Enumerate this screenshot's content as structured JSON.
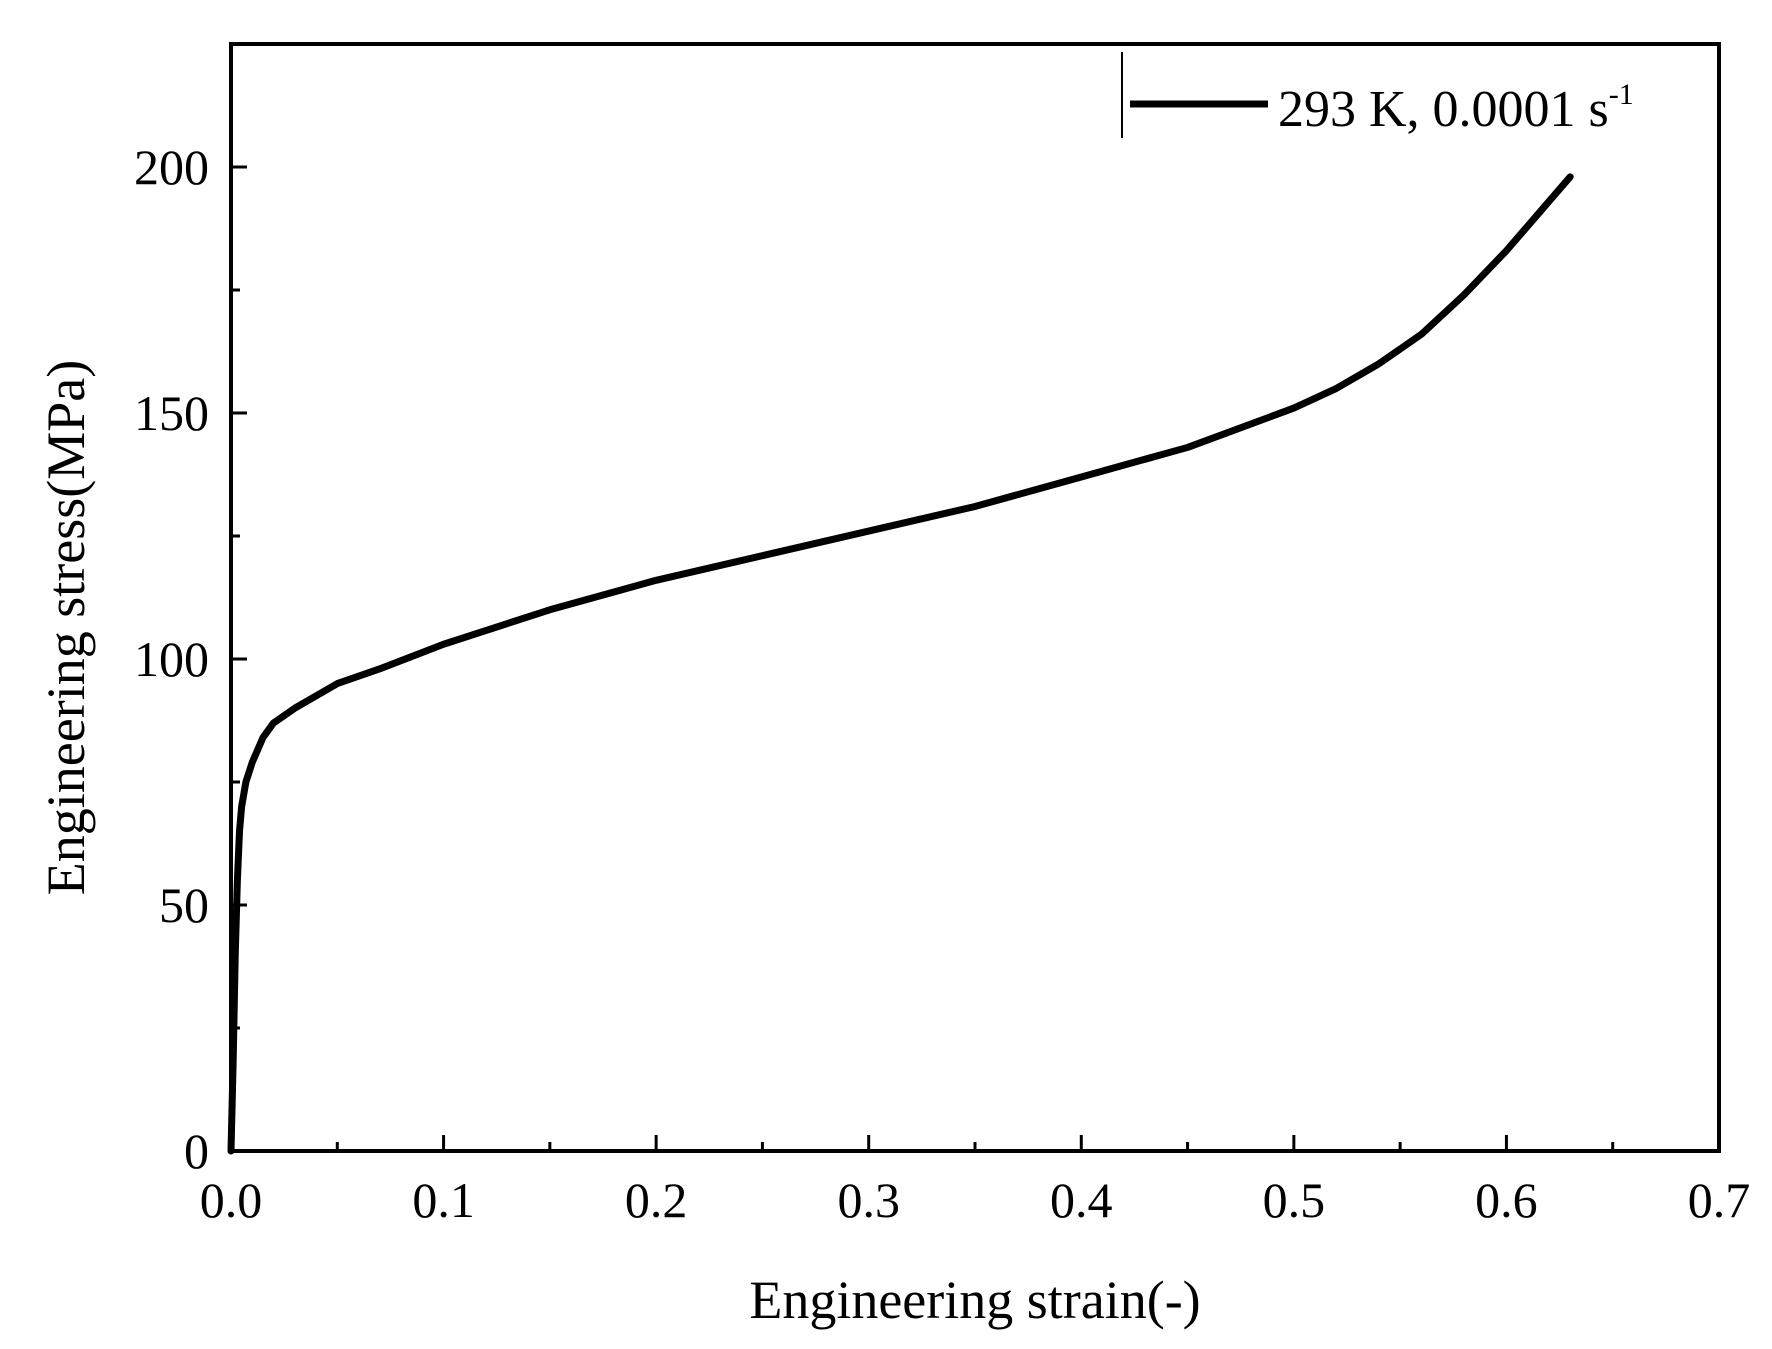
{
  "chart_data": {
    "type": "line",
    "title": "",
    "xlabel": "Engineering strain(-)",
    "ylabel": "Engineering stress(MPa)",
    "xlim": [
      0.0,
      0.7
    ],
    "ylim": [
      0,
      225
    ],
    "x_ticks": [
      0.0,
      0.1,
      0.2,
      0.3,
      0.4,
      0.5,
      0.6,
      0.7
    ],
    "x_tick_labels": [
      "0.0",
      "0.1",
      "0.2",
      "0.3",
      "0.4",
      "0.5",
      "0.6",
      "0.7"
    ],
    "x_minor_ticks": [
      0.05,
      0.15,
      0.25,
      0.35,
      0.45,
      0.55,
      0.65
    ],
    "y_ticks": [
      0,
      50,
      100,
      150,
      200
    ],
    "y_tick_labels": [
      "0",
      "50",
      "100",
      "150",
      "200"
    ],
    "y_minor_ticks": [
      25,
      75,
      125,
      175
    ],
    "grid": false,
    "legend_position": "top-right",
    "legend": {
      "text": "293 K, 0.0001 s",
      "superscript": "-1"
    },
    "series": [
      {
        "name": "293 K, 0.0001 s-1",
        "color": "#000000",
        "x": [
          0.0,
          0.001,
          0.002,
          0.003,
          0.004,
          0.005,
          0.007,
          0.01,
          0.015,
          0.02,
          0.03,
          0.05,
          0.07,
          0.1,
          0.15,
          0.2,
          0.25,
          0.3,
          0.35,
          0.4,
          0.45,
          0.5,
          0.52,
          0.54,
          0.56,
          0.58,
          0.6,
          0.61,
          0.62,
          0.63
        ],
        "y": [
          0,
          18,
          40,
          55,
          65,
          70,
          75,
          79,
          84,
          87,
          90,
          95,
          98,
          103,
          110,
          116,
          121,
          126,
          131,
          137,
          143,
          151,
          155,
          160,
          166,
          174,
          183,
          188,
          193,
          198
        ]
      }
    ]
  }
}
